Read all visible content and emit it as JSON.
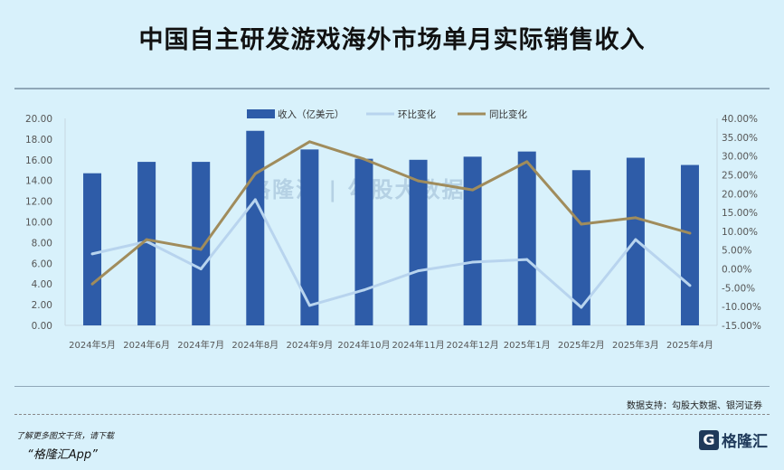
{
  "title": "中国自主研发游戏海外市场单月实际销售收入",
  "source": "数据支持：勾股大数据、银河证券",
  "promo_line1": "了解更多图文干货，请下载",
  "promo_line2": "“格隆汇App”",
  "logo_text": "格隆汇",
  "watermark": "格隆汇 | 勾股大数据",
  "colors": {
    "bar": "#2e5ca8",
    "mom": "#b8d4ee",
    "yoy": "#a08c5c"
  },
  "chart_data": {
    "type": "bar",
    "title": "中国自主研发游戏海外市场单月实际销售收入",
    "categories": [
      "2024年5月",
      "2024年6月",
      "2024年7月",
      "2024年8月",
      "2024年9月",
      "2024年10月",
      "2024年11月",
      "2024年12月",
      "2025年1月",
      "2025年2月",
      "2025年3月",
      "2025年4月"
    ],
    "series": [
      {
        "name": "收入（亿美元）",
        "type": "bar",
        "axis": "left",
        "values": [
          14.7,
          15.8,
          15.8,
          18.8,
          17.0,
          16.1,
          16.0,
          16.3,
          16.8,
          15.0,
          16.2,
          15.5
        ]
      },
      {
        "name": "环比变化",
        "type": "line",
        "axis": "right",
        "values": [
          4.0,
          7.3,
          0.0,
          18.4,
          -9.7,
          -5.6,
          -0.5,
          1.8,
          2.5,
          -10.2,
          7.8,
          -4.4
        ]
      },
      {
        "name": "同比变化",
        "type": "line",
        "axis": "right",
        "values": [
          -4.0,
          7.8,
          5.2,
          25.3,
          33.8,
          29.2,
          23.4,
          21.0,
          28.5,
          11.9,
          13.6,
          9.5
        ]
      }
    ],
    "left_axis": {
      "ylim": [
        0,
        20
      ],
      "ticks": [
        "0.00",
        "2.00",
        "4.00",
        "6.00",
        "8.00",
        "10.00",
        "12.00",
        "14.00",
        "16.00",
        "18.00",
        "20.00"
      ]
    },
    "right_axis": {
      "ylim": [
        -15,
        40
      ],
      "ticks": [
        "-15.00%",
        "-10.00%",
        "-5.00%",
        "0.00%",
        "5.00%",
        "10.00%",
        "15.00%",
        "20.00%",
        "25.00%",
        "30.00%",
        "35.00%",
        "40.00%"
      ]
    },
    "legend": "top-center",
    "grid": false
  }
}
